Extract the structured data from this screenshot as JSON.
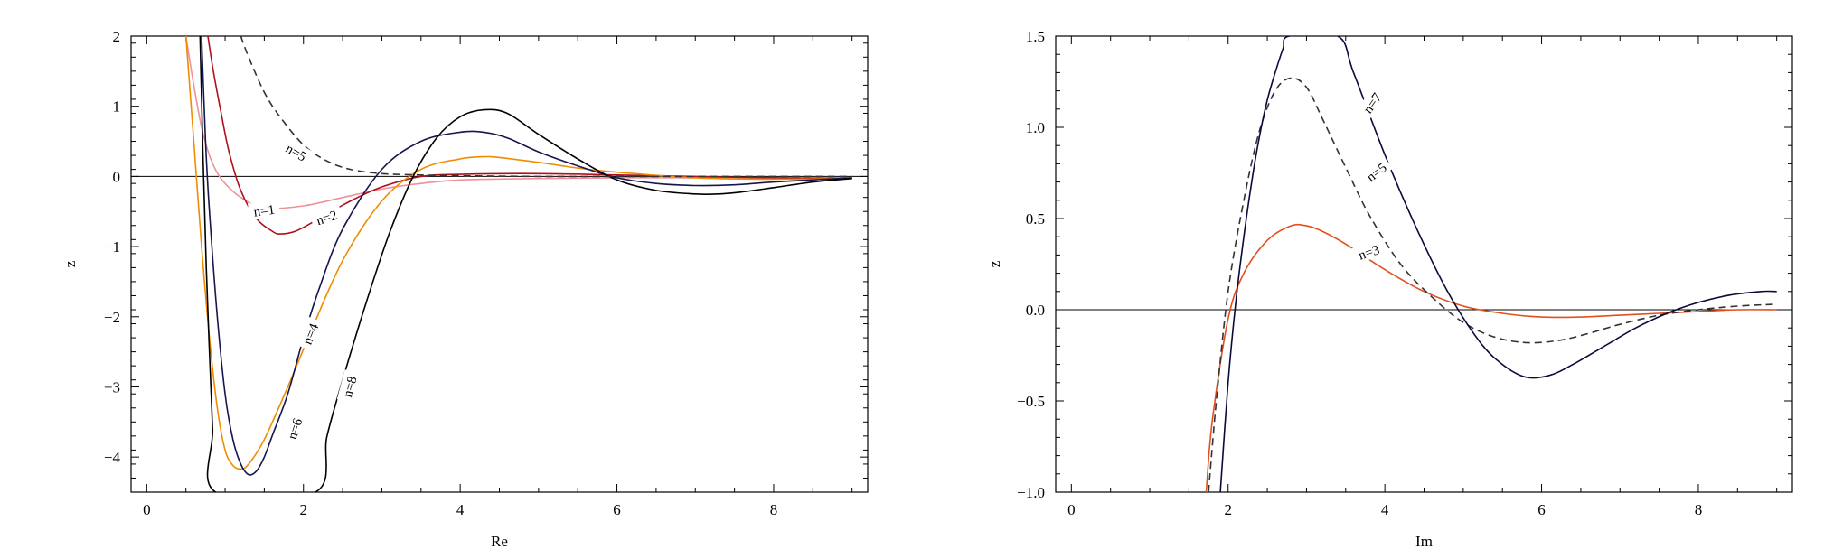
{
  "chart_data": [
    {
      "type": "line",
      "xlabel": "Re",
      "ylabel": "z",
      "xlim": [
        -0.2,
        9.2
      ],
      "ylim": [
        -4.5,
        2
      ],
      "xticks": [
        0,
        2,
        4,
        6,
        8
      ],
      "yticks": [
        -4,
        -3,
        -2,
        -1,
        0,
        1,
        2
      ],
      "xtick_labels": [
        "0",
        "2",
        "4",
        "6",
        "8"
      ],
      "ytick_labels": [
        "−4",
        "−3",
        "−2",
        "−1",
        "0",
        "1",
        "2"
      ],
      "zero_line": true,
      "series": [
        {
          "name": "n=1",
          "color": "#f0909a",
          "dash": "solid",
          "label_at": [
            1.5,
            -0.5
          ],
          "label_angle": -8,
          "x": [
            0.5,
            0.6,
            0.7,
            0.8,
            0.9,
            1.0,
            1.2,
            1.5,
            2.0,
            2.5,
            3.0,
            3.5,
            4.0,
            5.0,
            6.0,
            7.0,
            8.0,
            9.0
          ],
          "y": [
            2.0,
            1.3,
            0.7,
            0.3,
            0.05,
            -0.1,
            -0.3,
            -0.45,
            -0.42,
            -0.3,
            -0.18,
            -0.1,
            -0.05,
            -0.03,
            -0.02,
            -0.02,
            -0.02,
            -0.02
          ]
        },
        {
          "name": "n=2",
          "color": "#b0101c",
          "dash": "solid",
          "label_at": [
            2.3,
            -0.6
          ],
          "label_angle": -18,
          "x": [
            0.78,
            0.85,
            0.95,
            1.05,
            1.2,
            1.4,
            1.6,
            1.7,
            1.9,
            2.2,
            2.6,
            3.0,
            3.5,
            4.0,
            5.0,
            6.0,
            7.0,
            8.0,
            9.0
          ],
          "y": [
            2.0,
            1.5,
            0.9,
            0.35,
            -0.2,
            -0.6,
            -0.78,
            -0.82,
            -0.78,
            -0.6,
            -0.35,
            -0.15,
            0.0,
            0.03,
            0.04,
            0.02,
            0.0,
            -0.02,
            -0.03
          ]
        },
        {
          "name": "n=4",
          "color": "#f08c00",
          "dash": "solid",
          "label_at": [
            2.1,
            -2.25
          ],
          "label_angle": -68,
          "x": [
            0.5,
            0.6,
            0.7,
            0.8,
            0.9,
            1.0,
            1.1,
            1.2,
            1.3,
            1.5,
            1.8,
            2.1,
            2.5,
            3.0,
            3.5,
            4.0,
            4.3,
            4.5,
            5.0,
            5.5,
            6.0,
            7.0,
            8.0,
            9.0
          ],
          "y": [
            2.0,
            0.5,
            -1.0,
            -2.3,
            -3.3,
            -3.9,
            -4.12,
            -4.17,
            -4.1,
            -3.75,
            -3.0,
            -2.2,
            -1.2,
            -0.35,
            0.1,
            0.25,
            0.28,
            0.27,
            0.2,
            0.12,
            0.06,
            -0.02,
            -0.04,
            -0.03
          ]
        },
        {
          "name": "n=6",
          "color": "#161650",
          "dash": "solid",
          "label_at": [
            1.9,
            -3.6
          ],
          "label_angle": -72,
          "x": [
            0.7,
            0.75,
            0.8,
            0.9,
            1.0,
            1.1,
            1.2,
            1.3,
            1.4,
            1.5,
            1.6,
            1.8,
            2.0,
            2.2,
            2.5,
            3.0,
            3.5,
            4.0,
            4.3,
            4.6,
            5.0,
            5.5,
            6.0,
            6.5,
            7.0,
            7.5,
            8.0,
            9.0
          ],
          "y": [
            2.0,
            0.5,
            -0.5,
            -2.0,
            -3.1,
            -3.75,
            -4.1,
            -4.25,
            -4.2,
            -4.0,
            -3.7,
            -3.1,
            -2.3,
            -1.6,
            -0.75,
            0.1,
            0.5,
            0.63,
            0.63,
            0.55,
            0.35,
            0.15,
            -0.02,
            -0.1,
            -0.13,
            -0.12,
            -0.08,
            -0.02
          ]
        },
        {
          "name": "n=8",
          "color": "#000000",
          "dash": "solid",
          "label_at": [
            2.6,
            -3.0
          ],
          "label_angle": -75,
          "x": [
            0.68,
            0.72,
            0.76,
            0.8,
            0.84,
            0.88,
            2.15,
            2.3,
            2.5,
            2.8,
            3.1,
            3.4,
            3.7,
            4.0,
            4.3,
            4.6,
            5.0,
            5.5,
            6.0,
            6.5,
            7.0,
            7.3,
            7.6,
            8.0,
            8.5,
            9.0
          ],
          "y": [
            2.0,
            0.2,
            -1.3,
            -2.5,
            -3.6,
            -4.5,
            -4.5,
            -3.7,
            -2.9,
            -1.8,
            -0.8,
            0.0,
            0.55,
            0.85,
            0.95,
            0.9,
            0.6,
            0.25,
            -0.05,
            -0.2,
            -0.25,
            -0.25,
            -0.22,
            -0.16,
            -0.08,
            -0.03
          ]
        },
        {
          "name": "n=5",
          "color": "#333333",
          "dash": "dashed",
          "label_at": [
            1.9,
            0.33
          ],
          "label_angle": 30,
          "x": [
            1.2,
            1.3,
            1.5,
            1.7,
            2.0,
            2.3,
            2.6,
            3.0,
            3.5,
            4.0,
            5.0,
            6.0,
            7.0,
            8.0,
            9.0
          ],
          "y": [
            2.0,
            1.7,
            1.2,
            0.85,
            0.45,
            0.22,
            0.1,
            0.04,
            0.02,
            0.01,
            0.0,
            0.0,
            0.0,
            0.0,
            0.0
          ]
        }
      ]
    },
    {
      "type": "line",
      "xlabel": "Im",
      "ylabel": "z",
      "xlim": [
        -0.2,
        9.2
      ],
      "ylim": [
        -1.0,
        1.5
      ],
      "xticks": [
        0,
        2,
        4,
        6,
        8
      ],
      "yticks": [
        -1.0,
        -0.5,
        0.0,
        0.5,
        1.0,
        1.5
      ],
      "xtick_labels": [
        "0",
        "2",
        "4",
        "6",
        "8"
      ],
      "ytick_labels": [
        "−1.0",
        "−0.5",
        "0.0",
        "0.5",
        "1.0",
        "1.5"
      ],
      "zero_line": true,
      "series": [
        {
          "name": "n=3",
          "color": "#e2501e",
          "dash": "solid",
          "label_at": [
            3.8,
            0.31
          ],
          "label_angle": -18,
          "x": [
            1.72,
            1.8,
            2.0,
            2.2,
            2.5,
            2.8,
            3.0,
            3.2,
            3.5,
            4.0,
            4.5,
            5.0,
            5.5,
            6.0,
            6.5,
            7.0,
            7.5,
            8.0,
            8.5,
            9.0
          ],
          "y": [
            -1.0,
            -0.6,
            -0.05,
            0.2,
            0.38,
            0.46,
            0.46,
            0.43,
            0.36,
            0.22,
            0.1,
            0.02,
            -0.02,
            -0.04,
            -0.04,
            -0.03,
            -0.02,
            -0.01,
            0.0,
            0.0
          ]
        },
        {
          "name": "n=5",
          "color": "#333333",
          "dash": "dashed",
          "label_at": [
            3.9,
            0.75
          ],
          "label_angle": -38,
          "x": [
            1.75,
            1.85,
            2.0,
            2.2,
            2.4,
            2.6,
            2.8,
            3.0,
            3.2,
            3.5,
            3.8,
            4.2,
            4.6,
            5.0,
            5.4,
            5.8,
            6.2,
            6.6,
            7.0,
            7.5,
            8.0,
            8.5,
            9.0
          ],
          "y": [
            -1.0,
            -0.5,
            0.1,
            0.6,
            0.98,
            1.2,
            1.27,
            1.22,
            1.05,
            0.78,
            0.52,
            0.25,
            0.07,
            -0.07,
            -0.15,
            -0.18,
            -0.17,
            -0.13,
            -0.08,
            -0.03,
            0.0,
            0.02,
            0.03
          ]
        },
        {
          "name": "n=7",
          "color": "#0a0a3c",
          "dash": "solid",
          "label_at": [
            3.85,
            1.13
          ],
          "label_angle": -55,
          "x": [
            1.9,
            2.0,
            2.1,
            2.2,
            2.3,
            2.4,
            2.5,
            2.6,
            2.7,
            2.78,
            3.4,
            3.6,
            4.0,
            4.4,
            4.8,
            5.2,
            5.5,
            5.8,
            6.1,
            6.4,
            6.8,
            7.2,
            7.6,
            8.0,
            8.4,
            8.8,
            9.0
          ],
          "y": [
            -1.0,
            -0.4,
            0.05,
            0.4,
            0.7,
            0.95,
            1.15,
            1.3,
            1.43,
            1.5,
            1.5,
            1.3,
            0.85,
            0.45,
            0.1,
            -0.17,
            -0.3,
            -0.37,
            -0.36,
            -0.3,
            -0.2,
            -0.1,
            -0.02,
            0.04,
            0.08,
            0.1,
            0.1
          ]
        }
      ]
    }
  ]
}
